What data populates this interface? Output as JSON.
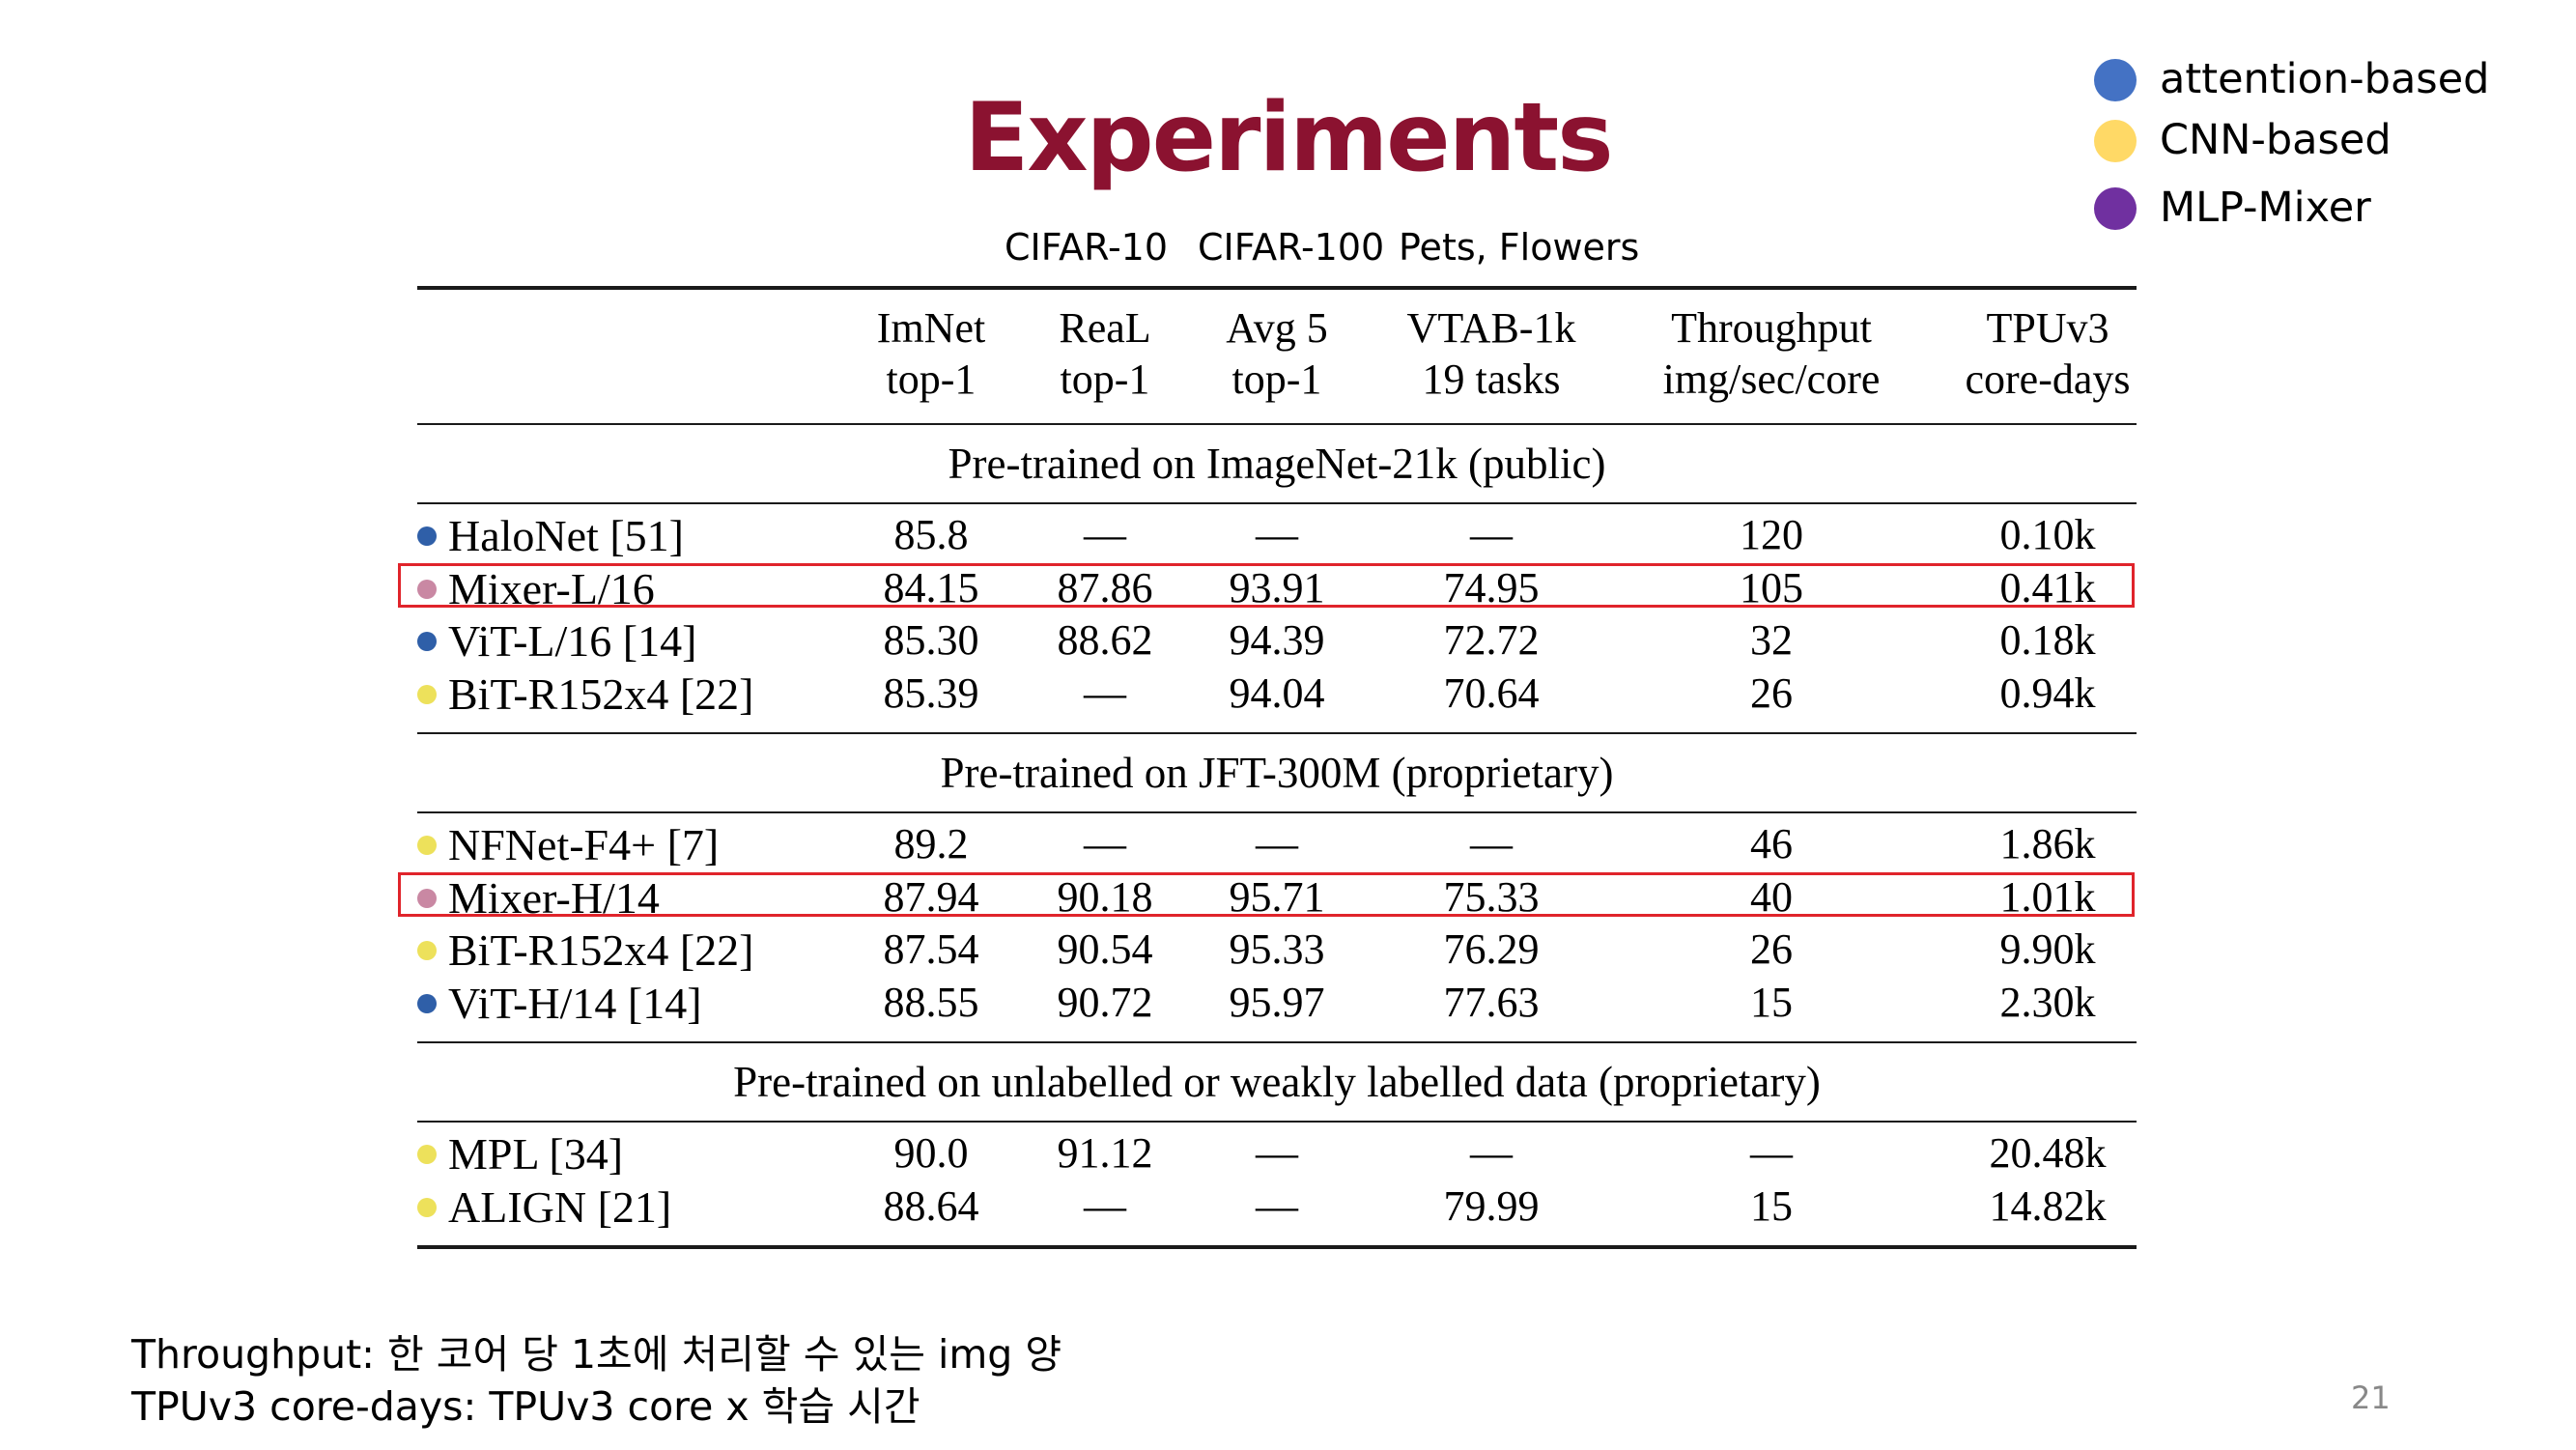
{
  "colors": {
    "title": "#8b1230",
    "attention": "#4472c4",
    "cnn": "#ffd966",
    "mlp": "#7030a0",
    "row_attention": "#2f5fa8",
    "row_cnn": "#ede15b",
    "row_mixer": "#c988a3",
    "highlight_box": "#e0242b"
  },
  "slide": {
    "title": "Experiments",
    "page_number": "21"
  },
  "legend": [
    {
      "label": "attention-based",
      "color_key": "attention",
      "icon": "blue-circle-icon"
    },
    {
      "label": "CNN-based",
      "color_key": "cnn",
      "icon": "yellow-circle-icon"
    },
    {
      "label": "MLP-Mixer",
      "color_key": "mlp",
      "icon": "purple-circle-icon"
    }
  ],
  "column_tags": [
    "CIFAR-10",
    "CIFAR-100",
    "Pets, Flowers"
  ],
  "table": {
    "headers": [
      {
        "line1": "ImNet",
        "line2": "top-1"
      },
      {
        "line1": "ReaL",
        "line2": "top-1"
      },
      {
        "line1": "Avg 5",
        "line2": "top-1"
      },
      {
        "line1": "VTAB-1k",
        "line2": "19 tasks"
      },
      {
        "line1": "Throughput",
        "line2": "img/sec/core"
      },
      {
        "line1": "TPUv3",
        "line2": "core-days"
      }
    ],
    "sections": [
      {
        "title": "Pre-trained on ImageNet-21k (public)",
        "rows": [
          {
            "model": "HaloNet [51]",
            "type": "attention",
            "highlight": false,
            "values": [
              "85.8",
              "—",
              "—",
              "—",
              "120",
              "0.10k"
            ]
          },
          {
            "model": "Mixer-L/16",
            "type": "mixer",
            "highlight": true,
            "values": [
              "84.15",
              "87.86",
              "93.91",
              "74.95",
              "105",
              "0.41k"
            ]
          },
          {
            "model": "ViT-L/16 [14]",
            "type": "attention",
            "highlight": false,
            "values": [
              "85.30",
              "88.62",
              "94.39",
              "72.72",
              "32",
              "0.18k"
            ]
          },
          {
            "model": "BiT-R152x4 [22]",
            "type": "cnn",
            "highlight": false,
            "values": [
              "85.39",
              "—",
              "94.04",
              "70.64",
              "26",
              "0.94k"
            ]
          }
        ]
      },
      {
        "title": "Pre-trained on JFT-300M (proprietary)",
        "rows": [
          {
            "model": "NFNet-F4+ [7]",
            "type": "cnn",
            "highlight": false,
            "values": [
              "89.2",
              "—",
              "—",
              "—",
              "46",
              "1.86k"
            ]
          },
          {
            "model": "Mixer-H/14",
            "type": "mixer",
            "highlight": true,
            "values": [
              "87.94",
              "90.18",
              "95.71",
              "75.33",
              "40",
              "1.01k"
            ]
          },
          {
            "model": "BiT-R152x4 [22]",
            "type": "cnn",
            "highlight": false,
            "values": [
              "87.54",
              "90.54",
              "95.33",
              "76.29",
              "26",
              "9.90k"
            ]
          },
          {
            "model": "ViT-H/14 [14]",
            "type": "attention",
            "highlight": false,
            "values": [
              "88.55",
              "90.72",
              "95.97",
              "77.63",
              "15",
              "2.30k"
            ]
          }
        ]
      },
      {
        "title": "Pre-trained on unlabelled or weakly labelled data (proprietary)",
        "rows": [
          {
            "model": "MPL [34]",
            "type": "cnn",
            "highlight": false,
            "values": [
              "90.0",
              "91.12",
              "—",
              "—",
              "—",
              "20.48k"
            ]
          },
          {
            "model": "ALIGN [21]",
            "type": "cnn",
            "highlight": false,
            "values": [
              "88.64",
              "—",
              "—",
              "79.99",
              "15",
              "14.82k"
            ]
          }
        ]
      }
    ]
  },
  "notes": [
    "Throughput: 한 코어 당 1초에 처리할 수 있는 img 양",
    "TPUv3 core-days: TPUv3 core x 학습 시간"
  ]
}
